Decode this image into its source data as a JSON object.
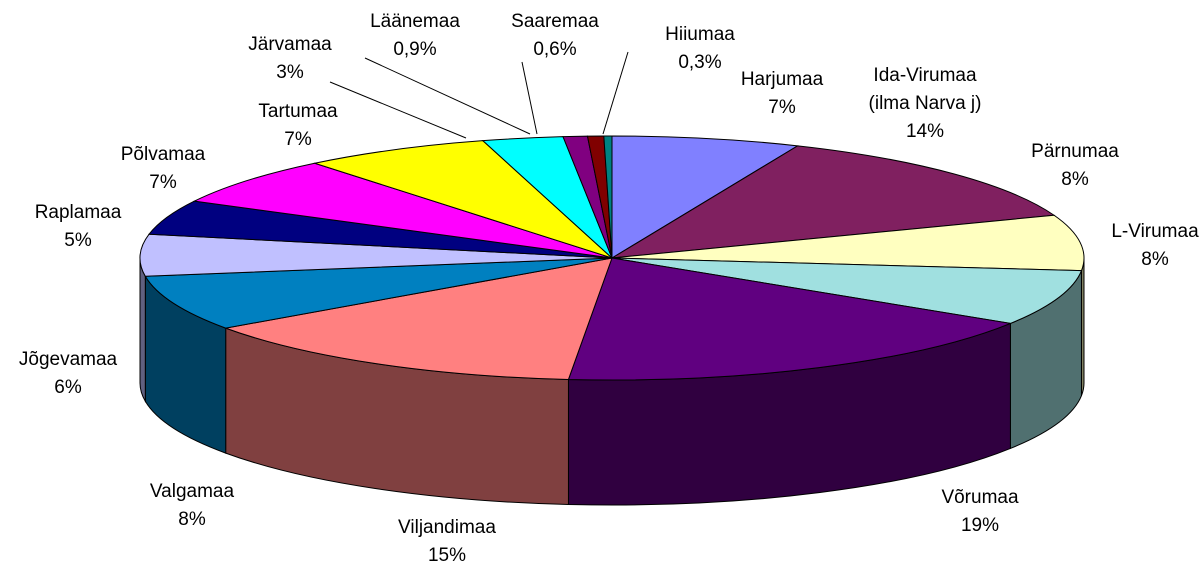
{
  "chart_data": {
    "type": "pie",
    "categories": [
      "Harjumaa",
      "Ida-Virumaa (ilma Narva j)",
      "Pärnumaa",
      "L-Virumaa",
      "Võrumaa",
      "Viljandimaa",
      "Valgamaa",
      "Jõgevamaa",
      "Raplamaa",
      "Põlvamaa",
      "Tartumaa",
      "Järvamaa",
      "Läänemaa",
      "Saaremaa",
      "Hiiumaa"
    ],
    "values": [
      7,
      14,
      8,
      8,
      19,
      15,
      8,
      6,
      5,
      7,
      7,
      3,
      0.9,
      0.6,
      0.3
    ],
    "value_labels": [
      "7%",
      "14%",
      "8%",
      "8%",
      "19%",
      "15%",
      "8%",
      "6%",
      "5%",
      "7%",
      "7%",
      "3%",
      "0,9%",
      "0,6%",
      "0,3%"
    ],
    "colors": [
      "#8080ff",
      "#802060",
      "#ffffc0",
      "#a0e0e0",
      "#600080",
      "#ff8080",
      "#0080c0",
      "#c0c0ff",
      "#000080",
      "#ff00ff",
      "#ffff00",
      "#00ffff",
      "#800080",
      "#800000",
      "#008080"
    ]
  }
}
